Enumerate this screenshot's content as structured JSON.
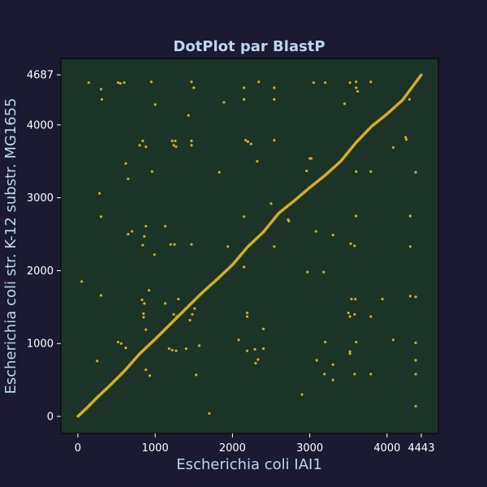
{
  "chart_data": {
    "type": "scatter",
    "title": "DotPlot par BlastP",
    "xlabel": "Escherichia coli IAI1",
    "ylabel": "Escherichia coli str. K-12 substr. MG1655",
    "xlim": [
      -220,
      4663
    ],
    "ylim": [
      -234,
      4912
    ],
    "x_ticks": [
      0,
      1000,
      2000,
      3000,
      4000,
      4443
    ],
    "y_ticks": [
      0,
      1000,
      2000,
      3000,
      4000,
      4687
    ],
    "grid": false,
    "legend": "none",
    "colors": {
      "background": "#1b1a30",
      "plot_background": "#1c3327",
      "point": "#d4ac27",
      "title": "#bcd6ee",
      "tick_label": "#ffffff"
    },
    "diagonal": [
      [
        0,
        0
      ],
      [
        120,
        120
      ],
      [
        250,
        260
      ],
      [
        420,
        430
      ],
      [
        600,
        620
      ],
      [
        800,
        860
      ],
      [
        1000,
        1060
      ],
      [
        1200,
        1270
      ],
      [
        1400,
        1480
      ],
      [
        1600,
        1690
      ],
      [
        1800,
        1880
      ],
      [
        2000,
        2080
      ],
      [
        2200,
        2330
      ],
      [
        2400,
        2530
      ],
      [
        2600,
        2790
      ],
      [
        2800,
        2960
      ],
      [
        3000,
        3140
      ],
      [
        3200,
        3310
      ],
      [
        3400,
        3500
      ],
      [
        3600,
        3760
      ],
      [
        3800,
        3980
      ],
      [
        4000,
        4150
      ],
      [
        4200,
        4340
      ],
      [
        4443,
        4687
      ]
    ],
    "points": [
      [
        50,
        1850
      ],
      [
        140,
        4580
      ],
      [
        250,
        760
      ],
      [
        280,
        3060
      ],
      [
        300,
        2740
      ],
      [
        300,
        4490
      ],
      [
        310,
        4350
      ],
      [
        300,
        1660
      ],
      [
        520,
        4580
      ],
      [
        550,
        4570
      ],
      [
        600,
        4580
      ],
      [
        620,
        3470
      ],
      [
        650,
        3260
      ],
      [
        700,
        2540
      ],
      [
        650,
        2500
      ],
      [
        520,
        1020
      ],
      [
        560,
        1000
      ],
      [
        620,
        940
      ],
      [
        800,
        3720
      ],
      [
        840,
        3780
      ],
      [
        880,
        3700
      ],
      [
        880,
        2610
      ],
      [
        860,
        2470
      ],
      [
        840,
        2350
      ],
      [
        920,
        1730
      ],
      [
        830,
        1600
      ],
      [
        860,
        1550
      ],
      [
        850,
        1410
      ],
      [
        850,
        1360
      ],
      [
        880,
        1190
      ],
      [
        880,
        640
      ],
      [
        930,
        560
      ],
      [
        950,
        4590
      ],
      [
        960,
        3360
      ],
      [
        990,
        2220
      ],
      [
        1000,
        4280
      ],
      [
        1130,
        2610
      ],
      [
        1130,
        1550
      ],
      [
        1200,
        2360
      ],
      [
        1250,
        2360
      ],
      [
        1220,
        3780
      ],
      [
        1260,
        3780
      ],
      [
        1240,
        3720
      ],
      [
        1270,
        3700
      ],
      [
        1180,
        930
      ],
      [
        1220,
        910
      ],
      [
        1270,
        900
      ],
      [
        1240,
        1400
      ],
      [
        1280,
        1370
      ],
      [
        1300,
        1610
      ],
      [
        1400,
        930
      ],
      [
        1450,
        1320
      ],
      [
        1480,
        1400
      ],
      [
        1430,
        4130
      ],
      [
        1470,
        4590
      ],
      [
        1500,
        4510
      ],
      [
        1470,
        3780
      ],
      [
        1470,
        3720
      ],
      [
        1470,
        2360
      ],
      [
        1510,
        1480
      ],
      [
        1530,
        570
      ],
      [
        1570,
        970
      ],
      [
        1700,
        40
      ],
      [
        1830,
        3350
      ],
      [
        1890,
        4310
      ],
      [
        1940,
        2330
      ],
      [
        2080,
        1050
      ],
      [
        2150,
        4510
      ],
      [
        2150,
        4350
      ],
      [
        2170,
        3790
      ],
      [
        2200,
        3770
      ],
      [
        2150,
        2740
      ],
      [
        2150,
        2050
      ],
      [
        2190,
        1420
      ],
      [
        2190,
        1370
      ],
      [
        2190,
        900
      ],
      [
        2240,
        3740
      ],
      [
        2290,
        920
      ],
      [
        2300,
        730
      ],
      [
        2330,
        780
      ],
      [
        2320,
        3500
      ],
      [
        2340,
        4590
      ],
      [
        2400,
        1200
      ],
      [
        2400,
        930
      ],
      [
        2500,
        2920
      ],
      [
        2540,
        4510
      ],
      [
        2540,
        4350
      ],
      [
        2540,
        3790
      ],
      [
        2540,
        2330
      ],
      [
        2730,
        2680
      ],
      [
        2720,
        2700
      ],
      [
        2900,
        300
      ],
      [
        2960,
        3370
      ],
      [
        3000,
        3540
      ],
      [
        3020,
        3540
      ],
      [
        2970,
        1980
      ],
      [
        3050,
        4580
      ],
      [
        3080,
        2540
      ],
      [
        3090,
        770
      ],
      [
        3180,
        1980
      ],
      [
        3200,
        4580
      ],
      [
        3200,
        1020
      ],
      [
        3190,
        580
      ],
      [
        3300,
        2490
      ],
      [
        3300,
        710
      ],
      [
        3300,
        500
      ],
      [
        3450,
        4290
      ],
      [
        3520,
        4580
      ],
      [
        3500,
        1420
      ],
      [
        3520,
        1370
      ],
      [
        3520,
        890
      ],
      [
        3520,
        860
      ],
      [
        3530,
        2370
      ],
      [
        3540,
        1610
      ],
      [
        3580,
        2340
      ],
      [
        3600,
        4590
      ],
      [
        3600,
        4510
      ],
      [
        3620,
        4460
      ],
      [
        3600,
        3360
      ],
      [
        3600,
        2750
      ],
      [
        3590,
        1610
      ],
      [
        3580,
        1400
      ],
      [
        3600,
        1020
      ],
      [
        3580,
        580
      ],
      [
        3790,
        4590
      ],
      [
        3790,
        3360
      ],
      [
        3790,
        580
      ],
      [
        3790,
        1370
      ],
      [
        3940,
        1610
      ],
      [
        4080,
        3690
      ],
      [
        4080,
        1050
      ],
      [
        4240,
        3830
      ],
      [
        4250,
        3800
      ],
      [
        4290,
        4350
      ],
      [
        4300,
        2750
      ],
      [
        4300,
        2330
      ],
      [
        4300,
        1650
      ],
      [
        4370,
        3350
      ],
      [
        4370,
        1640
      ],
      [
        4370,
        1010
      ],
      [
        4370,
        770
      ],
      [
        4370,
        580
      ],
      [
        4370,
        140
      ]
    ]
  }
}
